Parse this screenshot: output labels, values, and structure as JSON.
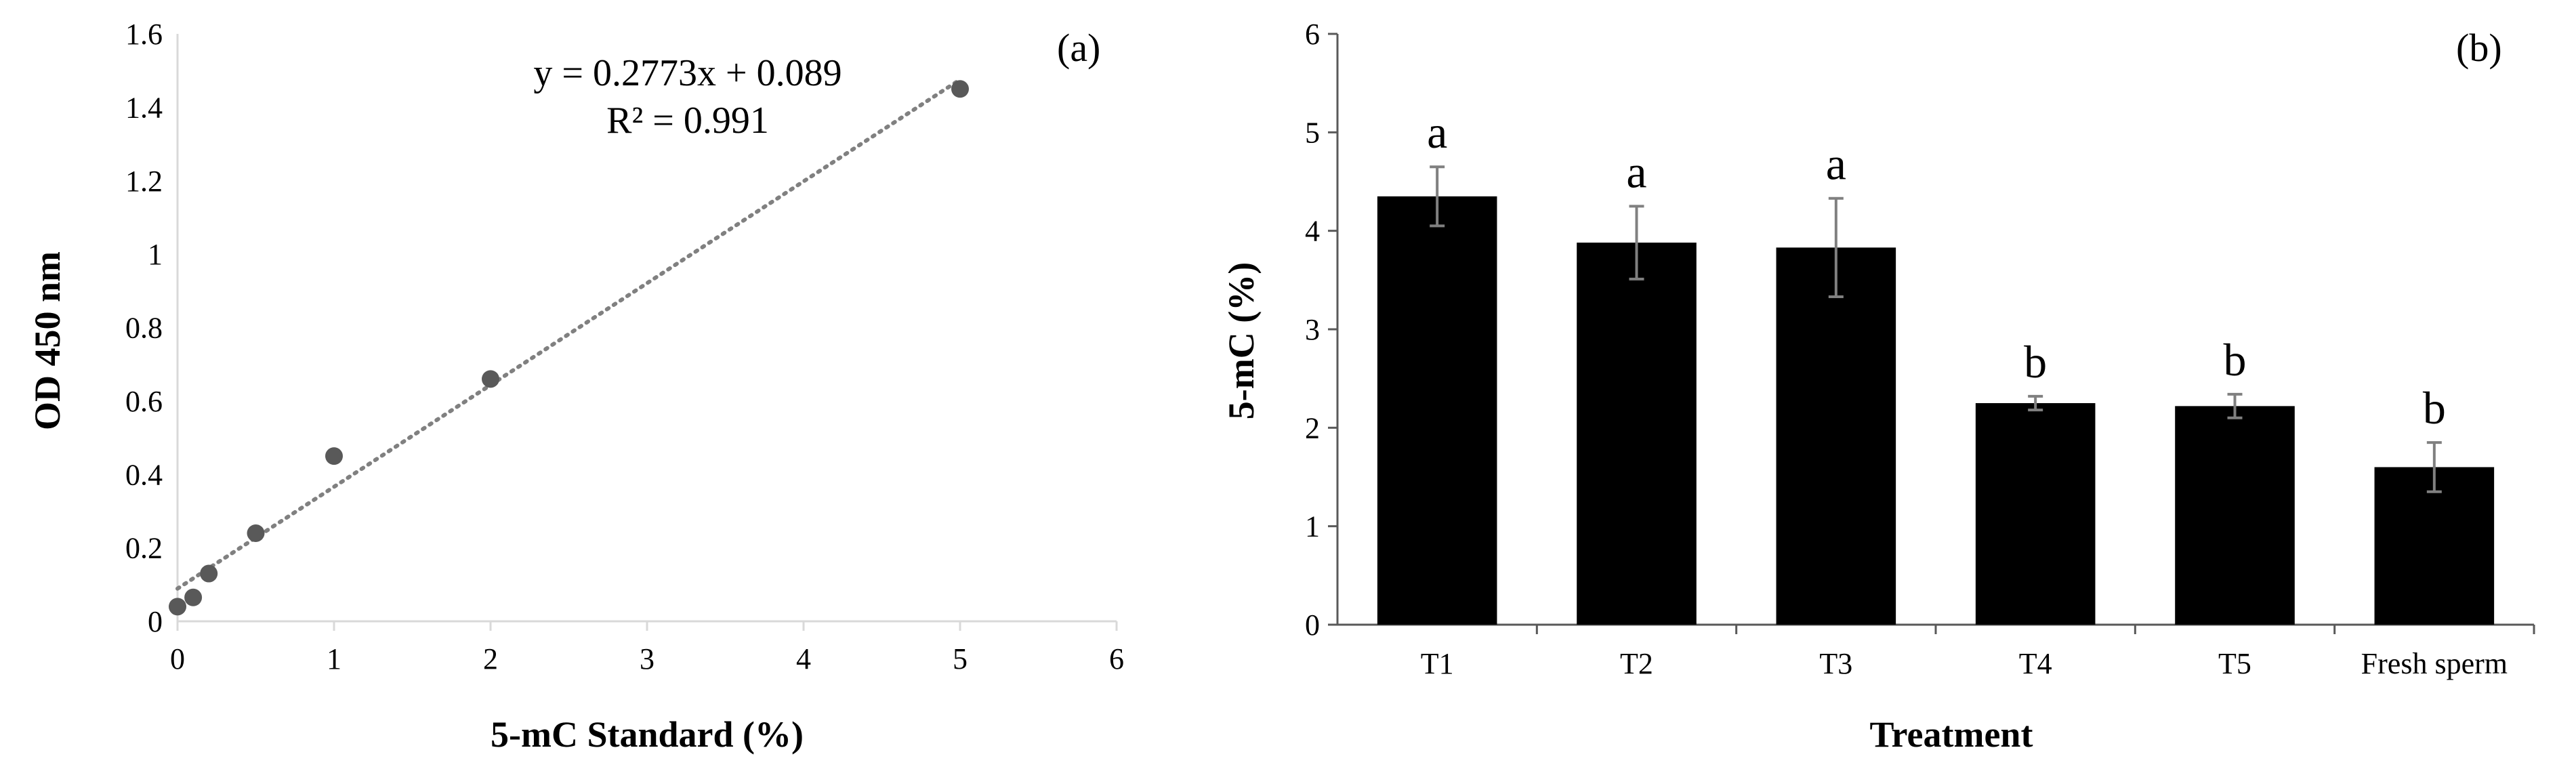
{
  "chart_data": [
    {
      "type": "scatter",
      "panel_label": "(a)",
      "xlabel": "5-mC Standard (%)",
      "ylabel": "OD 450 nm",
      "xlim": [
        0,
        6
      ],
      "ylim": [
        0,
        1.6
      ],
      "xticks": [
        0,
        1,
        2,
        3,
        4,
        5,
        6
      ],
      "yticks": [
        0,
        0.2,
        0.4,
        0.6,
        0.8,
        1.0,
        1.2,
        1.4,
        1.6
      ],
      "ytick_labels": [
        "0",
        "0.2",
        "0.4",
        "0.6",
        "0.8",
        "1",
        "1.2",
        "1.4",
        "1.6"
      ],
      "points": [
        {
          "x": 0,
          "y": 0.04
        },
        {
          "x": 0.1,
          "y": 0.065
        },
        {
          "x": 0.2,
          "y": 0.13
        },
        {
          "x": 0.5,
          "y": 0.24
        },
        {
          "x": 1,
          "y": 0.45
        },
        {
          "x": 2,
          "y": 0.66
        },
        {
          "x": 5,
          "y": 1.45
        }
      ],
      "trendline": {
        "slope": 0.2773,
        "intercept": 0.089,
        "x_range": [
          0,
          5
        ]
      },
      "equation": "y = 0.2773x  + 0.089",
      "r_squared": "R² = 0.991",
      "grid": false,
      "marker_color": "#595959",
      "trend_color": "#808080"
    },
    {
      "type": "bar",
      "panel_label": "(b)",
      "xlabel": "Treatment",
      "ylabel": "5-mC (%)",
      "ylim": [
        0,
        6
      ],
      "yticks": [
        0,
        1,
        2,
        3,
        4,
        5,
        6
      ],
      "categories": [
        "T1",
        "T2",
        "T3",
        "T4",
        "T5",
        "Fresh sperm"
      ],
      "values": [
        4.35,
        3.88,
        3.83,
        2.25,
        2.22,
        1.6
      ],
      "errors": [
        0.3,
        0.37,
        0.5,
        0.07,
        0.12,
        0.25
      ],
      "significance": [
        "a",
        "a",
        "a",
        "b",
        "b",
        "b"
      ],
      "grid": false,
      "bar_color": "#000000",
      "error_color": "#808080"
    }
  ]
}
